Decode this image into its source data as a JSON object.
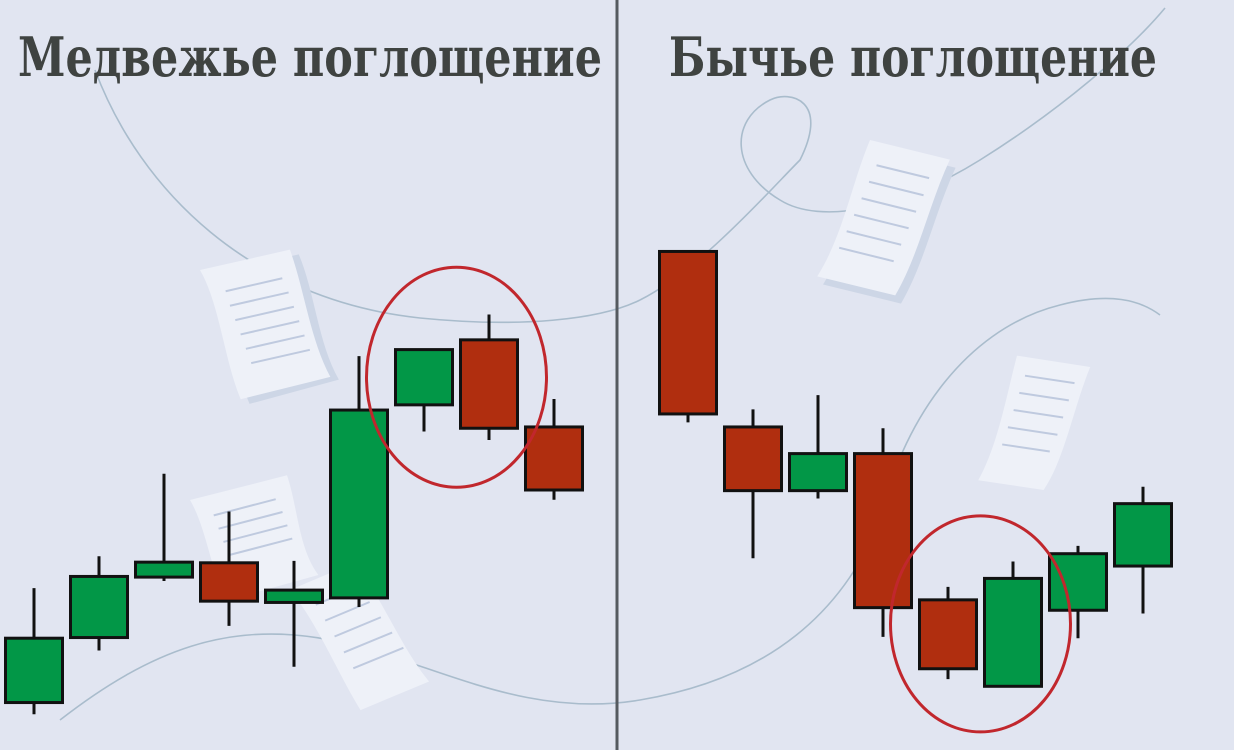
{
  "colors": {
    "background": "#e1e5f1",
    "bullish": "#029747",
    "bearish": "#b02e0f",
    "outline": "#111111",
    "highlight": "#c1272d",
    "divider": "#555a60",
    "decor_line": "#a9bccc",
    "title": "#3f4341"
  },
  "chart_data": [
    {
      "type": "candlestick",
      "title": "Медвежье поглощение",
      "highlight": [
        6,
        7
      ],
      "ylim": [
        0,
        100
      ],
      "candles": [
        {
          "open": 7.3,
          "close": 17.2,
          "high": 24.9,
          "low": 5.5
        },
        {
          "open": 17.3,
          "close": 26.7,
          "high": 29.8,
          "low": 15.3
        },
        {
          "open": 26.6,
          "close": 28.9,
          "high": 42.5,
          "low": 26.0
        },
        {
          "open": 28.8,
          "close": 22.9,
          "high": 36.7,
          "low": 19.1
        },
        {
          "open": 22.7,
          "close": 24.6,
          "high": 29.1,
          "low": 12.8
        },
        {
          "open": 23.4,
          "close": 52.3,
          "high": 60.6,
          "low": 22.0
        },
        {
          "open": 53.1,
          "close": 61.6,
          "high": 61.6,
          "low": 49.0
        },
        {
          "open": 63.1,
          "close": 49.5,
          "high": 67.0,
          "low": 47.7
        },
        {
          "open": 49.7,
          "close": 40.0,
          "high": 54.0,
          "low": 38.5
        }
      ]
    },
    {
      "type": "candlestick",
      "title": "Бычье поглощение",
      "highlight": [
        4,
        5
      ],
      "ylim": [
        0,
        100
      ],
      "candles": [
        {
          "open": 76.7,
          "close": 51.7,
          "high": 76.7,
          "low": 50.4
        },
        {
          "open": 49.7,
          "close": 39.9,
          "high": 52.4,
          "low": 29.5
        },
        {
          "open": 39.9,
          "close": 45.6,
          "high": 54.6,
          "low": 38.7
        },
        {
          "open": 45.6,
          "close": 21.9,
          "high": 49.5,
          "low": 17.4
        },
        {
          "open": 23.1,
          "close": 12.5,
          "high": 25.1,
          "low": 10.9
        },
        {
          "open": 9.8,
          "close": 26.4,
          "high": 29.0,
          "low": 9.8
        },
        {
          "open": 21.5,
          "close": 30.2,
          "high": 31.4,
          "low": 17.2
        },
        {
          "open": 28.3,
          "close": 37.9,
          "high": 40.5,
          "low": 21.0
        }
      ]
    }
  ]
}
